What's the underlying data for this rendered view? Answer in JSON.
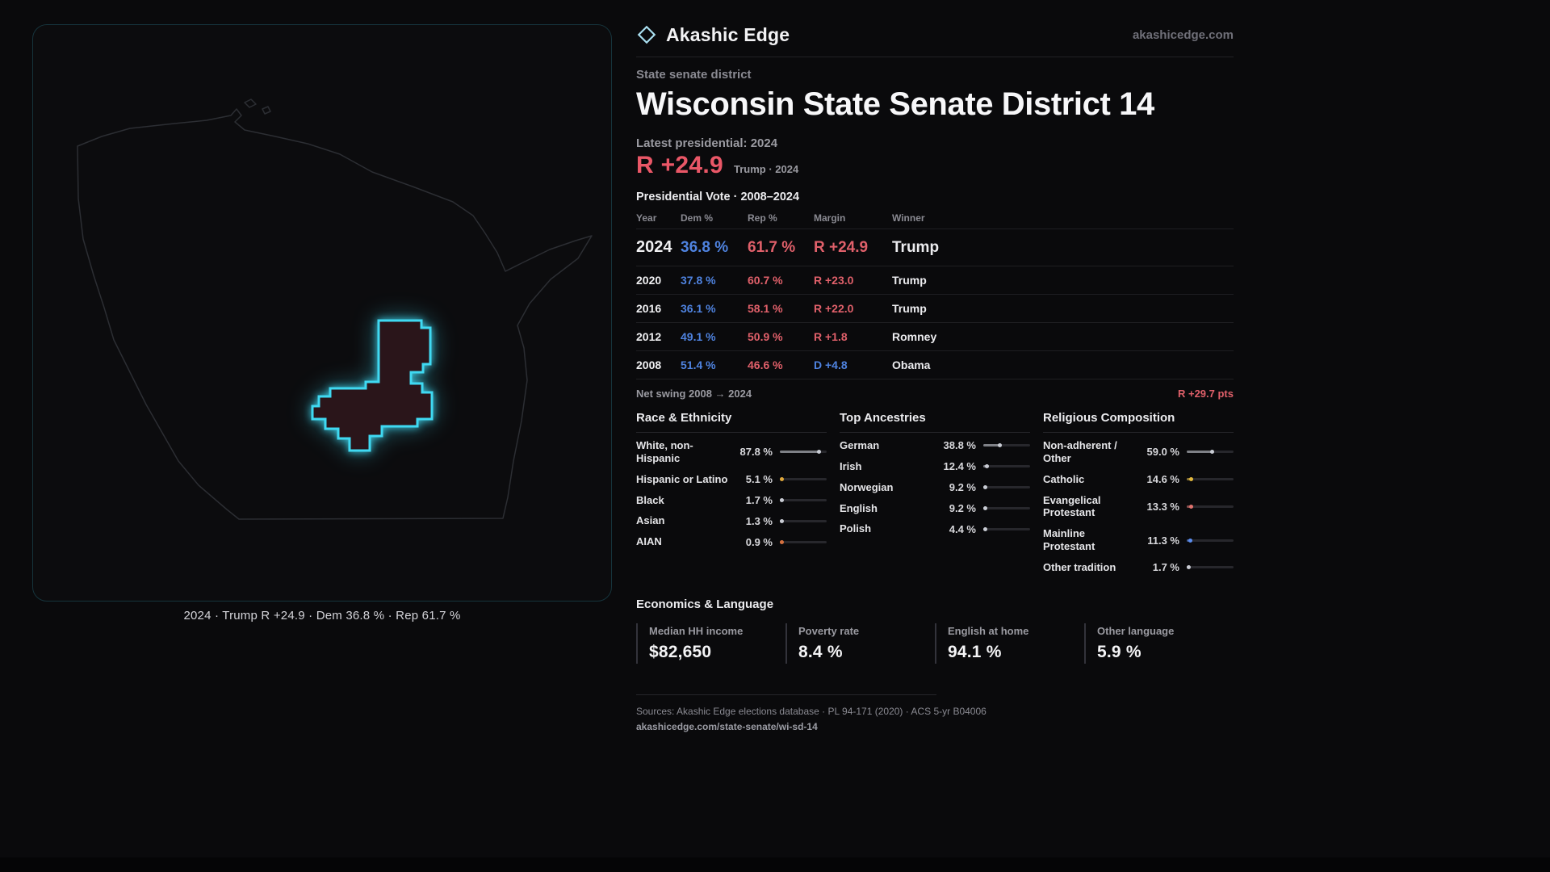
{
  "header": {
    "brand": "Akashic Edge",
    "site": "akashicedge.com"
  },
  "district": {
    "category": "State senate district",
    "title": "Wisconsin State Senate District 14"
  },
  "latest": {
    "label": "Latest presidential: 2024",
    "margin": "R +24.9",
    "detail": "Trump · 2024"
  },
  "map": {
    "caption": "2024 · Trump R +24.9 · Dem 36.8 % · Rep 61.7 %"
  },
  "vote": {
    "title": "Presidential Vote · 2008–2024",
    "headers": {
      "year": "Year",
      "dem": "Dem %",
      "rep": "Rep %",
      "margin": "Margin",
      "winner": "Winner"
    },
    "rows": [
      {
        "year": "2024",
        "dem": "36.8 %",
        "rep": "61.7 %",
        "margin": "R +24.9",
        "winner": "Trump"
      },
      {
        "year": "2020",
        "dem": "37.8 %",
        "rep": "60.7 %",
        "margin": "R +23.0",
        "winner": "Trump"
      },
      {
        "year": "2016",
        "dem": "36.1 %",
        "rep": "58.1 %",
        "margin": "R +22.0",
        "winner": "Trump"
      },
      {
        "year": "2012",
        "dem": "49.1 %",
        "rep": "50.9 %",
        "margin": "R +1.8",
        "winner": "Romney"
      },
      {
        "year": "2008",
        "dem": "51.4 %",
        "rep": "46.6 %",
        "margin": "D +4.8",
        "winner": "Obama"
      }
    ],
    "net_swing_label": "Net swing 2008 → 2024",
    "net_swing_value": "R +29.7 pts"
  },
  "race": {
    "title": "Race & Ethnicity",
    "rows": [
      {
        "label": "White, non-Hispanic",
        "value": "87.8 %",
        "pct": 87.8,
        "color": "#c9ccd4"
      },
      {
        "label": "Hispanic or Latino",
        "value": "5.1 %",
        "pct": 5.1,
        "color": "#e0a83c"
      },
      {
        "label": "Black",
        "value": "1.7 %",
        "pct": 1.7,
        "color": "#c9ccd4"
      },
      {
        "label": "Asian",
        "value": "1.3 %",
        "pct": 1.3,
        "color": "#c9ccd4"
      },
      {
        "label": "AIAN",
        "value": "0.9 %",
        "pct": 0.9,
        "color": "#d4703f"
      }
    ]
  },
  "ancestry": {
    "title": "Top Ancestries",
    "rows": [
      {
        "label": "German",
        "value": "38.8 %",
        "pct": 38.8,
        "color": "#c9ccd4"
      },
      {
        "label": "Irish",
        "value": "12.4 %",
        "pct": 12.4,
        "color": "#c9ccd4"
      },
      {
        "label": "Norwegian",
        "value": "9.2 %",
        "pct": 9.2,
        "color": "#c9ccd4"
      },
      {
        "label": "English",
        "value": "9.2 %",
        "pct": 9.2,
        "color": "#c9ccd4"
      },
      {
        "label": "Polish",
        "value": "4.4 %",
        "pct": 4.4,
        "color": "#c9ccd4"
      }
    ]
  },
  "religion": {
    "title": "Religious Composition",
    "rows": [
      {
        "label": "Non-adherent / Other",
        "value": "59.0 %",
        "pct": 59.0,
        "color": "#c9ccd4"
      },
      {
        "label": "Catholic",
        "value": "14.6 %",
        "pct": 14.6,
        "color": "#e3b93e"
      },
      {
        "label": "Evangelical Protestant",
        "value": "13.3 %",
        "pct": 13.3,
        "color": "#e0736e"
      },
      {
        "label": "Mainline Protestant",
        "value": "11.3 %",
        "pct": 11.3,
        "color": "#5b8def"
      },
      {
        "label": "Other tradition",
        "value": "1.7 %",
        "pct": 1.7,
        "color": "#c9ccd4"
      }
    ]
  },
  "econ": {
    "title": "Economics & Language",
    "stats": [
      {
        "label": "Median HH income",
        "value": "$82,650"
      },
      {
        "label": "Poverty rate",
        "value": "8.4 %"
      },
      {
        "label": "English at home",
        "value": "94.1 %"
      },
      {
        "label": "Other language",
        "value": "5.9 %"
      }
    ]
  },
  "footer": {
    "sources": "Sources: Akashic Edge elections database · PL 94-171 (2020) · ACS 5-yr B04006",
    "permalink": "akashicedge.com/state-senate/wi-sd-14"
  },
  "colors": {
    "dem_blue": "#4f83e0",
    "rep_red": "#e0606a",
    "accent_cyan": "#3fd9f2",
    "background": "#0a0a0c"
  },
  "chart_data": [
    {
      "type": "table",
      "title": "Presidential Vote · 2008–2024",
      "columns": [
        "Year",
        "Dem %",
        "Rep %",
        "Margin",
        "Winner"
      ],
      "rows": [
        [
          2024,
          36.8,
          61.7,
          "R +24.9",
          "Trump"
        ],
        [
          2020,
          37.8,
          60.7,
          "R +23.0",
          "Trump"
        ],
        [
          2016,
          36.1,
          58.1,
          "R +22.0",
          "Trump"
        ],
        [
          2012,
          49.1,
          50.9,
          "R +1.8",
          "Romney"
        ],
        [
          2008,
          51.4,
          46.6,
          "D +4.8",
          "Obama"
        ]
      ],
      "note": "Net swing 2008 → 2024: R +29.7 pts"
    },
    {
      "type": "bar",
      "title": "Race & Ethnicity",
      "categories": [
        "White, non-Hispanic",
        "Hispanic or Latino",
        "Black",
        "Asian",
        "AIAN"
      ],
      "values": [
        87.8,
        5.1,
        1.7,
        1.3,
        0.9
      ],
      "unit": "%",
      "xlim": [
        0,
        100
      ],
      "orientation": "horizontal"
    },
    {
      "type": "bar",
      "title": "Top Ancestries",
      "categories": [
        "German",
        "Irish",
        "Norwegian",
        "English",
        "Polish"
      ],
      "values": [
        38.8,
        12.4,
        9.2,
        9.2,
        4.4
      ],
      "unit": "%",
      "xlim": [
        0,
        100
      ],
      "orientation": "horizontal"
    },
    {
      "type": "bar",
      "title": "Religious Composition",
      "categories": [
        "Non-adherent / Other",
        "Catholic",
        "Evangelical Protestant",
        "Mainline Protestant",
        "Other tradition"
      ],
      "values": [
        59.0,
        14.6,
        13.3,
        11.3,
        1.7
      ],
      "unit": "%",
      "xlim": [
        0,
        100
      ],
      "orientation": "horizontal"
    },
    {
      "type": "table",
      "title": "Economics & Language",
      "columns": [
        "Median HH income",
        "Poverty rate",
        "English at home",
        "Other language"
      ],
      "rows": [
        [
          "$82,650",
          "8.4 %",
          "94.1 %",
          "5.9 %"
        ]
      ]
    }
  ]
}
